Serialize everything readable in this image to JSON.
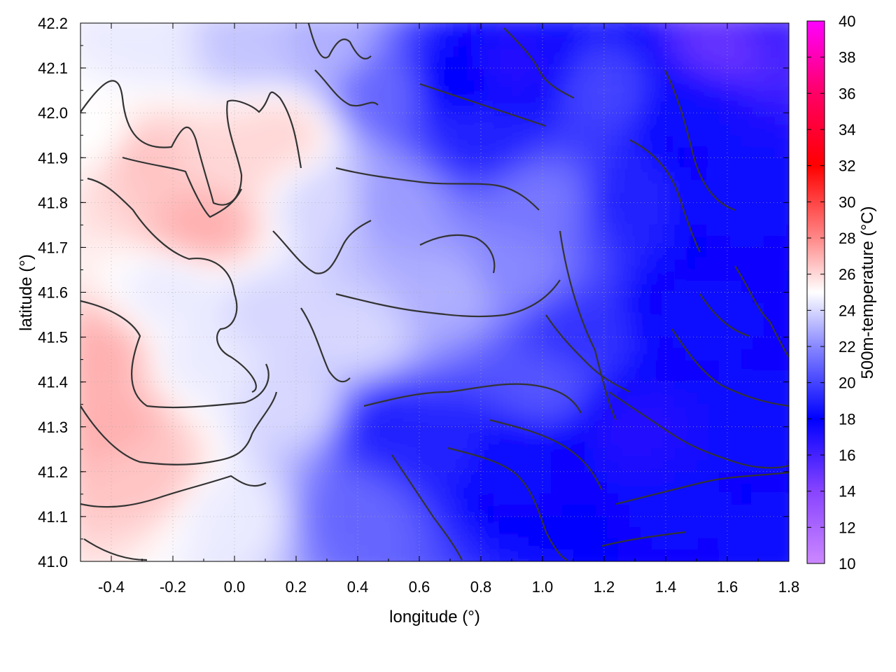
{
  "chart_data": {
    "type": "heatmap",
    "title": "",
    "xlabel": "longitude (°)",
    "ylabel": "latitude (°)",
    "colorbar_label": "500m-temperature (°C)",
    "xlim": [
      -0.5,
      1.8
    ],
    "ylim": [
      41.0,
      42.2
    ],
    "x_ticks": [
      "-0.4",
      "-0.2",
      "0.0",
      "0.2",
      "0.4",
      "0.6",
      "0.8",
      "1.0",
      "1.2",
      "1.4",
      "1.6",
      "1.8"
    ],
    "x_tick_values": [
      -0.4,
      -0.2,
      0.0,
      0.2,
      0.4,
      0.6,
      0.8,
      1.0,
      1.2,
      1.4,
      1.6,
      1.8
    ],
    "y_ticks": [
      "41.0",
      "41.1",
      "41.2",
      "41.3",
      "41.4",
      "41.5",
      "41.6",
      "41.7",
      "41.8",
      "41.9",
      "42.0",
      "42.1",
      "42.2"
    ],
    "y_tick_values": [
      41.0,
      41.1,
      41.2,
      41.3,
      41.4,
      41.5,
      41.6,
      41.7,
      41.8,
      41.9,
      42.0,
      42.1,
      42.2
    ],
    "colorbar_range": [
      10,
      40
    ],
    "colorbar_ticks": [
      "10",
      "12",
      "14",
      "16",
      "18",
      "20",
      "22",
      "24",
      "26",
      "28",
      "30",
      "32",
      "34",
      "36",
      "38",
      "40"
    ],
    "colorbar_tick_values": [
      10,
      12,
      14,
      16,
      18,
      20,
      22,
      24,
      26,
      28,
      30,
      32,
      34,
      36,
      38,
      40
    ],
    "colormap": [
      {
        "value": 10,
        "color": "#cc88ff"
      },
      {
        "value": 14,
        "color": "#8844ff"
      },
      {
        "value": 18,
        "color": "#0000ff"
      },
      {
        "value": 22,
        "color": "#8888ff"
      },
      {
        "value": 25,
        "color": "#ffffff"
      },
      {
        "value": 28,
        "color": "#ff8888"
      },
      {
        "value": 32,
        "color": "#ff0000"
      },
      {
        "value": 36,
        "color": "#ff0066"
      },
      {
        "value": 40,
        "color": "#ff00ff"
      }
    ],
    "grid": true,
    "contour_color": "#333333",
    "field_samples": [
      {
        "lon": -0.45,
        "lat": 41.45,
        "temp": 27
      },
      {
        "lon": -0.4,
        "lat": 41.3,
        "temp": 27
      },
      {
        "lon": -0.3,
        "lat": 41.2,
        "temp": 26.5
      },
      {
        "lon": -0.1,
        "lat": 41.75,
        "temp": 27
      },
      {
        "lon": -0.3,
        "lat": 41.9,
        "temp": 26.5
      },
      {
        "lon": 0.0,
        "lat": 41.9,
        "temp": 26
      },
      {
        "lon": 0.15,
        "lat": 41.95,
        "temp": 26
      },
      {
        "lon": -0.45,
        "lat": 41.95,
        "temp": 25
      },
      {
        "lon": 0.1,
        "lat": 41.55,
        "temp": 24
      },
      {
        "lon": 0.2,
        "lat": 41.35,
        "temp": 24
      },
      {
        "lon": 0.0,
        "lat": 41.1,
        "temp": 24.5
      },
      {
        "lon": 0.4,
        "lat": 41.5,
        "temp": 24
      },
      {
        "lon": 0.3,
        "lat": 41.8,
        "temp": 24
      },
      {
        "lon": 0.5,
        "lat": 41.8,
        "temp": 22.5
      },
      {
        "lon": 0.7,
        "lat": 41.6,
        "temp": 23
      },
      {
        "lon": 0.9,
        "lat": 41.65,
        "temp": 22
      },
      {
        "lon": 1.0,
        "lat": 41.8,
        "temp": 21.5
      },
      {
        "lon": 0.4,
        "lat": 41.1,
        "temp": 21
      },
      {
        "lon": 0.5,
        "lat": 41.3,
        "temp": 19
      },
      {
        "lon": 0.7,
        "lat": 41.25,
        "temp": 19
      },
      {
        "lon": 0.9,
        "lat": 41.2,
        "temp": 17.5
      },
      {
        "lon": 1.0,
        "lat": 41.4,
        "temp": 20.5
      },
      {
        "lon": 1.1,
        "lat": 41.5,
        "temp": 19.5
      },
      {
        "lon": 1.3,
        "lat": 41.3,
        "temp": 17
      },
      {
        "lon": 1.5,
        "lat": 41.1,
        "temp": 17.5
      },
      {
        "lon": 1.7,
        "lat": 41.3,
        "temp": 17.5
      },
      {
        "lon": 1.5,
        "lat": 41.55,
        "temp": 17.5
      },
      {
        "lon": 1.6,
        "lat": 41.8,
        "temp": 17.5
      },
      {
        "lon": 1.5,
        "lat": 42.0,
        "temp": 17.5
      },
      {
        "lon": 1.3,
        "lat": 41.8,
        "temp": 19
      },
      {
        "lon": 1.2,
        "lat": 42.05,
        "temp": 20
      },
      {
        "lon": 0.9,
        "lat": 42.1,
        "temp": 17
      },
      {
        "lon": 0.7,
        "lat": 42.07,
        "temp": 18
      },
      {
        "lon": 0.8,
        "lat": 41.95,
        "temp": 19
      },
      {
        "lon": 0.5,
        "lat": 42.05,
        "temp": 21
      },
      {
        "lon": 0.3,
        "lat": 42.15,
        "temp": 23
      },
      {
        "lon": 0.05,
        "lat": 42.15,
        "temp": 23.5
      },
      {
        "lon": -0.3,
        "lat": 42.15,
        "temp": 24.5
      },
      {
        "lon": 1.6,
        "lat": 42.15,
        "temp": 15
      },
      {
        "lon": 1.75,
        "lat": 42.18,
        "temp": 16
      },
      {
        "lon": 1.7,
        "lat": 41.05,
        "temp": 18.5
      },
      {
        "lon": -0.1,
        "lat": 41.45,
        "temp": 24.5
      },
      {
        "lon": -0.2,
        "lat": 41.6,
        "temp": 24.5
      }
    ]
  }
}
